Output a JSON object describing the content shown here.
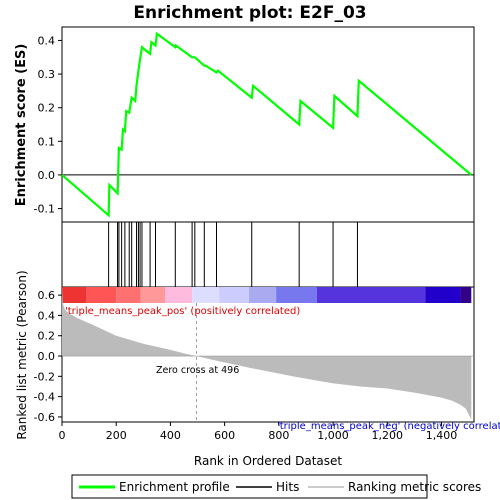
{
  "chart_data": {
    "type": "line",
    "title": "Enrichment plot: E2F_03",
    "xlabel": "Rank in Ordered Dataset",
    "ylabel_top": "Enrichment score (ES)",
    "ylabel_bottom": "Ranked list metric (Pearson)",
    "xlim": [
      0,
      1520
    ],
    "x_ticks": [
      0,
      200,
      400,
      600,
      800,
      1000,
      1200,
      1400
    ],
    "x_tick_labels": [
      "0",
      "200",
      "400",
      "600",
      "800",
      "1,000",
      "1,200",
      "1,400"
    ],
    "es_ylim": [
      -0.14,
      0.44
    ],
    "es_ticks": [
      -0.1,
      0.0,
      0.1,
      0.2,
      0.3,
      0.4
    ],
    "es_tick_labels": [
      "-0.1",
      "0.0",
      "0.1",
      "0.2",
      "0.3",
      "0.4"
    ],
    "metric_ylim": [
      -0.65,
      0.68
    ],
    "metric_ticks": [
      -0.6,
      -0.4,
      -0.2,
      0.0,
      0.2,
      0.4,
      0.6
    ],
    "metric_tick_labels": [
      "-0.6",
      "-0.4",
      "-0.2",
      "0.0",
      "0.2",
      "0.4",
      "0.6"
    ],
    "series": [
      {
        "name": "Enrichment profile",
        "color": "#00ff00",
        "x": [
          0,
          172,
          175,
          205,
          210,
          220,
          225,
          232,
          237,
          248,
          257,
          270,
          275,
          282,
          288,
          295,
          302,
          325,
          330,
          345,
          350,
          418,
          420,
          480,
          490,
          525,
          530,
          570,
          575,
          700,
          705,
          875,
          880,
          1000,
          1005,
          1090,
          1095,
          1510
        ],
        "y": [
          0.0,
          -0.12,
          -0.03,
          -0.055,
          0.08,
          0.075,
          0.135,
          0.13,
          0.19,
          0.185,
          0.23,
          0.22,
          0.265,
          0.31,
          0.345,
          0.38,
          0.375,
          0.36,
          0.395,
          0.385,
          0.42,
          0.38,
          0.385,
          0.35,
          0.35,
          0.325,
          0.325,
          0.305,
          0.31,
          0.23,
          0.265,
          0.15,
          0.22,
          0.14,
          0.235,
          0.175,
          0.28,
          0.0
        ]
      }
    ],
    "hits": [
      172,
      205,
      210,
      220,
      232,
      248,
      257,
      275,
      282,
      288,
      295,
      325,
      345,
      418,
      480,
      490,
      525,
      570,
      700,
      875,
      1000,
      1090
    ],
    "ranked_metric_profile": {
      "x": [
        0,
        3,
        10,
        25,
        60,
        120,
        200,
        300,
        400,
        460,
        496,
        560,
        700,
        850,
        1000,
        1100,
        1200,
        1300,
        1400,
        1440,
        1470,
        1490,
        1505,
        1510
      ],
      "y": [
        0.68,
        0.52,
        0.46,
        0.42,
        0.37,
        0.3,
        0.2,
        0.12,
        0.06,
        0.02,
        0.0,
        -0.04,
        -0.12,
        -0.2,
        -0.27,
        -0.3,
        -0.32,
        -0.36,
        -0.41,
        -0.44,
        -0.48,
        -0.52,
        -0.6,
        -0.62
      ]
    },
    "zero_cross": 496,
    "annotations": {
      "zero_cross": "Zero cross at 496",
      "positive_label": "'triple_means_peak_pos' (positively correlated)",
      "negative_label": "'triple_means_peak_neg' (negatively correlated)"
    },
    "colorbar_segments": [
      {
        "x0": 0,
        "x1": 90,
        "color": "#ee3333"
      },
      {
        "x0": 90,
        "x1": 200,
        "color": "#ff5555"
      },
      {
        "x0": 200,
        "x1": 290,
        "color": "#ff7070"
      },
      {
        "x0": 290,
        "x1": 380,
        "color": "#ff9999"
      },
      {
        "x0": 380,
        "x1": 480,
        "color": "#ffbbdd"
      },
      {
        "x0": 480,
        "x1": 580,
        "color": "#ddddff"
      },
      {
        "x0": 580,
        "x1": 690,
        "color": "#ccccff"
      },
      {
        "x0": 690,
        "x1": 790,
        "color": "#aaaaf0"
      },
      {
        "x0": 790,
        "x1": 940,
        "color": "#7777ee"
      },
      {
        "x0": 940,
        "x1": 1340,
        "color": "#5533dd"
      },
      {
        "x0": 1340,
        "x1": 1470,
        "color": "#2200cc"
      },
      {
        "x0": 1470,
        "x1": 1510,
        "color": "#330088"
      }
    ],
    "legend": {
      "placement": "bottom",
      "items": [
        {
          "label": "Enrichment profile",
          "color": "#00ff00"
        },
        {
          "label": "Hits",
          "color": "#000000"
        },
        {
          "label": "Ranking metric scores",
          "color": "#bbbbbb"
        }
      ]
    }
  }
}
